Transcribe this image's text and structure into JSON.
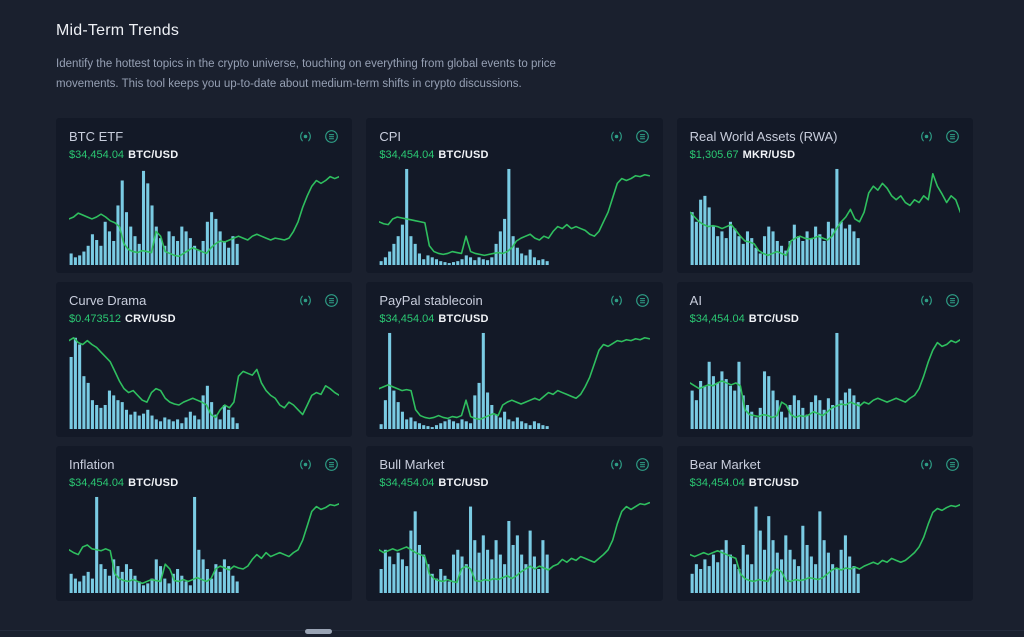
{
  "page": {
    "title": "Mid-Term Trends",
    "description": "Identify the hottest topics in the crypto universe, touching on everything from global events to price movements. This tool keeps you up-to-date about medium-term shifts in crypto discussions.",
    "card_icons": [
      "radar-target-icon",
      "menu-circle-icon"
    ],
    "colors": {
      "page_bg": "#1a202e",
      "card_bg": "#131927",
      "bar": "#7acbe3",
      "line": "#2fbf5f",
      "price_green": "#2bc873",
      "icon_teal": "#2e9e86",
      "title_text": "#c9cedd",
      "desc_text": "#96a0b4"
    }
  },
  "cards": [
    {
      "title": "BTC ETF",
      "price": "$34,454.04",
      "pair": "BTC/USD",
      "chart_data": {
        "type": "bar+line",
        "note": "volume bars (left 63% of axis) + price line, axes hidden, values normalized 0-100",
        "bars": [
          12,
          8,
          10,
          14,
          20,
          32,
          26,
          20,
          45,
          35,
          25,
          62,
          88,
          55,
          40,
          30,
          22,
          98,
          85,
          62,
          40,
          28,
          20,
          35,
          30,
          25,
          40,
          35,
          28,
          20,
          15,
          25,
          45,
          55,
          48,
          35,
          25,
          18,
          30,
          22
        ],
        "line": [
          48,
          50,
          54,
          52,
          50,
          48,
          50,
          53,
          50,
          46,
          44,
          40,
          22,
          16,
          14,
          13,
          15,
          14,
          13,
          35,
          30,
          14,
          12,
          10,
          9,
          12,
          15,
          18,
          16,
          14,
          12,
          18,
          22,
          25,
          24,
          26,
          28,
          30,
          28,
          26,
          30,
          32,
          30,
          28,
          26,
          28,
          27,
          26,
          28,
          35,
          45,
          60,
          72,
          82,
          88,
          85,
          88,
          92,
          90,
          92
        ]
      }
    },
    {
      "title": "CPI",
      "price": "$34,454.04",
      "pair": "BTC/USD",
      "chart_data": {
        "type": "bar+line",
        "bars": [
          4,
          8,
          14,
          22,
          30,
          42,
          100,
          30,
          22,
          12,
          6,
          10,
          8,
          6,
          4,
          3,
          2,
          3,
          4,
          6,
          10,
          8,
          5,
          8,
          6,
          5,
          8,
          22,
          35,
          48,
          100,
          30,
          18,
          12,
          10,
          16,
          8,
          5,
          6,
          4
        ],
        "line": [
          45,
          43,
          42,
          48,
          50,
          49,
          48,
          47,
          46,
          45,
          44,
          20,
          14,
          12,
          11,
          12,
          14,
          13,
          12,
          30,
          14,
          12,
          11,
          10,
          11,
          12,
          13,
          12,
          14,
          18,
          25,
          28,
          30,
          32,
          28,
          26,
          30,
          28,
          35,
          40,
          38,
          42,
          38,
          40,
          38,
          36,
          32,
          30,
          35,
          45,
          55,
          70,
          85,
          90,
          88,
          90,
          93,
          92,
          94,
          93
        ]
      }
    },
    {
      "title": "Real World Assets (RWA)",
      "price": "$1,305.67",
      "pair": "MKR/USD",
      "chart_data": {
        "type": "bar+line",
        "bars": [
          55,
          45,
          68,
          72,
          60,
          40,
          30,
          35,
          28,
          45,
          38,
          30,
          22,
          35,
          28,
          18,
          12,
          30,
          40,
          35,
          25,
          20,
          15,
          25,
          42,
          30,
          25,
          35,
          28,
          40,
          32,
          25,
          45,
          38,
          100,
          45,
          38,
          42,
          35,
          28
        ],
        "line": [
          55,
          50,
          45,
          42,
          40,
          41,
          40,
          38,
          40,
          42,
          36,
          30,
          25,
          24,
          22,
          15,
          12,
          10,
          12,
          14,
          12,
          10,
          25,
          28,
          30,
          28,
          27,
          28,
          30,
          28,
          26,
          30,
          38,
          45,
          50,
          58,
          48,
          45,
          55,
          75,
          82,
          78,
          85,
          80,
          72,
          68,
          72,
          65,
          62,
          68,
          65,
          72,
          68,
          95,
          82,
          74,
          65,
          72,
          68,
          55
        ]
      }
    },
    {
      "title": "Curve Drama",
      "price": "$0.473512",
      "pair": "CRV/USD",
      "chart_data": {
        "type": "bar+line",
        "bars": [
          75,
          95,
          88,
          55,
          48,
          30,
          25,
          22,
          25,
          40,
          35,
          30,
          28,
          20,
          15,
          18,
          14,
          16,
          20,
          14,
          10,
          8,
          12,
          10,
          8,
          10,
          6,
          12,
          18,
          14,
          10,
          35,
          45,
          28,
          15,
          10,
          25,
          20,
          12,
          6
        ],
        "line": [
          92,
          95,
          90,
          88,
          92,
          88,
          85,
          80,
          75,
          70,
          60,
          50,
          42,
          38,
          40,
          35,
          30,
          28,
          38,
          42,
          40,
          32,
          28,
          26,
          25,
          28,
          30,
          32,
          30,
          28,
          25,
          15,
          12,
          20,
          25,
          22,
          28,
          55,
          60,
          58,
          56,
          62,
          48,
          40,
          35,
          32,
          25,
          22,
          28,
          25,
          20,
          15,
          25,
          35,
          38,
          36,
          45,
          42,
          38,
          35
        ]
      }
    },
    {
      "title": "PayPal stablecoin",
      "price": "$34,454.04",
      "pair": "BTC/USD",
      "chart_data": {
        "type": "bar+line",
        "bars": [
          5,
          30,
          100,
          40,
          28,
          18,
          10,
          12,
          8,
          6,
          4,
          3,
          2,
          4,
          6,
          8,
          10,
          8,
          6,
          10,
          8,
          6,
          35,
          48,
          100,
          38,
          25,
          15,
          12,
          18,
          10,
          8,
          12,
          8,
          6,
          4,
          8,
          6,
          4,
          3
        ],
        "line": [
          42,
          44,
          46,
          44,
          42,
          40,
          41,
          40,
          20,
          14,
          12,
          11,
          12,
          14,
          12,
          11,
          13,
          12,
          14,
          30,
          13,
          11,
          10,
          12,
          14,
          16,
          14,
          25,
          28,
          30,
          28,
          26,
          28,
          30,
          32,
          30,
          34,
          38,
          36,
          40,
          38,
          36,
          34,
          32,
          36,
          44,
          54,
          68,
          82,
          88,
          86,
          89,
          92,
          91,
          93,
          92,
          94,
          93,
          95,
          94
        ]
      }
    },
    {
      "title": "AI",
      "price": "$34,454.04",
      "pair": "BTC/USD",
      "chart_data": {
        "type": "bar+line",
        "bars": [
          40,
          30,
          50,
          45,
          70,
          55,
          48,
          60,
          52,
          45,
          40,
          70,
          35,
          25,
          18,
          12,
          22,
          60,
          55,
          40,
          30,
          18,
          12,
          25,
          35,
          30,
          22,
          15,
          28,
          35,
          30,
          20,
          32,
          25,
          100,
          30,
          38,
          42,
          35,
          28
        ],
        "line": [
          48,
          45,
          42,
          44,
          46,
          45,
          48,
          50,
          48,
          46,
          48,
          45,
          20,
          15,
          14,
          13,
          15,
          14,
          12,
          14,
          28,
          25,
          15,
          12,
          14,
          13,
          15,
          18,
          16,
          14,
          18,
          22,
          24,
          26,
          25,
          28,
          26,
          24,
          28,
          26,
          30,
          32,
          30,
          28,
          30,
          32,
          30,
          28,
          32,
          35,
          42,
          55,
          70,
          82,
          90,
          86,
          88,
          92,
          90,
          93
        ]
      }
    },
    {
      "title": "Inflation",
      "price": "$34,454.04",
      "pair": "BTC/USD",
      "chart_data": {
        "type": "bar+line",
        "bars": [
          20,
          15,
          12,
          18,
          22,
          15,
          100,
          30,
          25,
          18,
          35,
          28,
          22,
          30,
          25,
          18,
          12,
          8,
          10,
          15,
          35,
          28,
          15,
          10,
          20,
          25,
          18,
          12,
          8,
          100,
          45,
          35,
          25,
          15,
          30,
          22,
          35,
          28,
          18,
          12
        ],
        "line": [
          45,
          42,
          40,
          48,
          50,
          46,
          45,
          44,
          46,
          44,
          20,
          15,
          13,
          12,
          14,
          12,
          10,
          12,
          14,
          13,
          12,
          30,
          25,
          13,
          12,
          14,
          12,
          14,
          16,
          14,
          12,
          15,
          25,
          28,
          26,
          24,
          28,
          26,
          25,
          28,
          35,
          40,
          36,
          42,
          38,
          40,
          42,
          40,
          38,
          42,
          45,
          55,
          70,
          85,
          90,
          87,
          89,
          92,
          91,
          93
        ]
      }
    },
    {
      "title": "Bull Market",
      "price": "$34,454.04",
      "pair": "BTC/USD",
      "chart_data": {
        "type": "bar+line",
        "bars": [
          25,
          45,
          38,
          30,
          42,
          35,
          28,
          65,
          85,
          50,
          40,
          30,
          20,
          15,
          25,
          18,
          12,
          40,
          45,
          38,
          30,
          90,
          55,
          42,
          60,
          45,
          35,
          55,
          40,
          30,
          75,
          50,
          60,
          40,
          30,
          65,
          38,
          25,
          55,
          40
        ],
        "line": [
          45,
          42,
          44,
          46,
          44,
          46,
          48,
          45,
          42,
          40,
          38,
          20,
          15,
          13,
          12,
          14,
          12,
          11,
          25,
          28,
          25,
          13,
          12,
          14,
          13,
          15,
          14,
          16,
          18,
          15,
          18,
          22,
          25,
          28,
          25,
          28,
          26,
          24,
          28,
          30,
          35,
          32,
          36,
          34,
          38,
          36,
          34,
          32,
          36,
          40,
          45,
          55,
          72,
          85,
          90,
          87,
          90,
          93,
          92,
          94
        ]
      }
    },
    {
      "title": "Bear Market",
      "price": "$34,454.04",
      "pair": "BTC/USD",
      "chart_data": {
        "type": "bar+line",
        "bars": [
          20,
          30,
          25,
          35,
          28,
          40,
          32,
          45,
          55,
          40,
          30,
          25,
          50,
          40,
          30,
          90,
          65,
          45,
          80,
          55,
          42,
          35,
          60,
          45,
          35,
          28,
          70,
          50,
          38,
          30,
          85,
          55,
          42,
          30,
          25,
          45,
          60,
          38,
          28,
          20
        ],
        "line": [
          40,
          38,
          40,
          42,
          40,
          42,
          44,
          42,
          40,
          38,
          36,
          20,
          15,
          13,
          12,
          14,
          13,
          12,
          22,
          25,
          22,
          13,
          12,
          14,
          13,
          14,
          16,
          15,
          14,
          16,
          20,
          24,
          26,
          24,
          26,
          25,
          27,
          25,
          28,
          30,
          32,
          30,
          34,
          32,
          36,
          34,
          32,
          34,
          38,
          42,
          48,
          58,
          72,
          84,
          88,
          86,
          89,
          91,
          90,
          92
        ]
      }
    }
  ]
}
